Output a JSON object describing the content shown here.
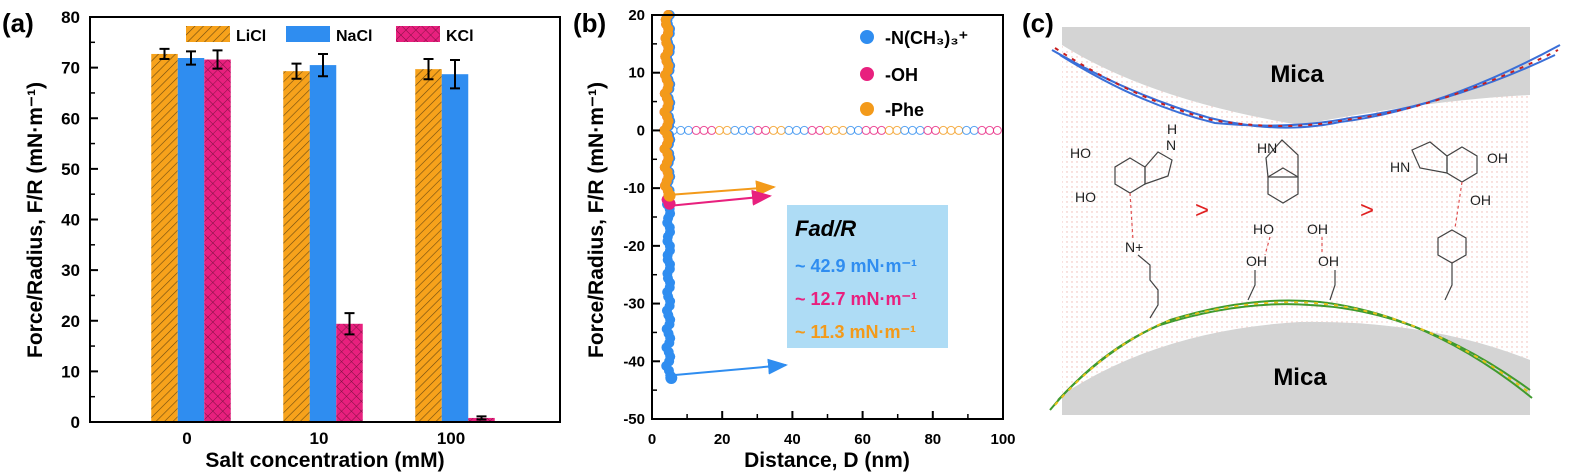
{
  "panel_labels": {
    "a": "(a)",
    "b": "(b)",
    "c": "(c)"
  },
  "colors": {
    "licl": "#f7a21b",
    "nacl": "#2f8df0",
    "kcl": "#e8207e",
    "nme3": "#2f8df0",
    "oh": "#e8207e",
    "phe": "#f39a1a",
    "box": "#aedcf5"
  },
  "chart_data": [
    {
      "type": "bar",
      "title": "",
      "xlabel": "Salt concentration (mM)",
      "ylabel": "Force/Radius, F/R (mN·m⁻¹)",
      "ylim": [
        0,
        80
      ],
      "yticks": [
        "0",
        "10",
        "20",
        "30",
        "40",
        "50",
        "60",
        "70",
        "80"
      ],
      "categories": [
        "0",
        "10",
        "100"
      ],
      "legend_position": "top",
      "series": [
        {
          "name": "LiCl",
          "pattern": "hatch",
          "values": [
            72.7,
            69.3,
            69.7
          ],
          "errors": [
            1.0,
            1.5,
            2.0
          ]
        },
        {
          "name": "NaCl",
          "pattern": "solid",
          "values": [
            71.9,
            70.5,
            68.7
          ],
          "errors": [
            1.3,
            2.2,
            2.8
          ]
        },
        {
          "name": "KCl",
          "pattern": "crosshatch",
          "values": [
            71.6,
            19.4,
            0.8
          ],
          "errors": [
            1.8,
            2.1,
            0.3
          ]
        }
      ]
    },
    {
      "type": "scatter",
      "xlabel": "Distance, D (nm)",
      "ylabel": "Force/Radius, F/R (mN·m⁻¹)",
      "xlim": [
        0,
        100
      ],
      "ylim": [
        -50,
        20
      ],
      "xticks": [
        "0",
        "20",
        "40",
        "60",
        "80",
        "100"
      ],
      "yticks": [
        "-50",
        "-40",
        "-30",
        "-20",
        "-10",
        "0",
        "10",
        "20"
      ],
      "legend_position": "top-right",
      "series": [
        {
          "name": "-N(CH₃)₃⁺",
          "adhesion_min": -42.9,
          "min_distance": 5.5
        },
        {
          "name": "-OH",
          "adhesion_min": -12.7,
          "min_distance": 5.0
        },
        {
          "name": "-Phe",
          "adhesion_min": -11.3,
          "min_distance": 5.0
        }
      ],
      "annotation": {
        "title": "Fad/R",
        "lines": [
          "~ 42.9 mN·m⁻¹",
          "~ 12.7 mN·m⁻¹",
          "~ 11.3 mN·m⁻¹"
        ]
      }
    }
  ],
  "diagram": {
    "mica_top": "Mica",
    "mica_bottom": "Mica",
    "gt1": ">",
    "gt2": ">",
    "left": {
      "ho1": "HO",
      "ho2": "HO",
      "h": "H",
      "n": "N",
      "nplus": "N+"
    },
    "middle": {
      "hn": "HN",
      "ho": "HO",
      "oh": "OH",
      "oh_chain1": "OH",
      "oh_chain2": "OH"
    },
    "right": {
      "hn": "HN",
      "oh1": "OH",
      "oh2": "OH"
    }
  }
}
